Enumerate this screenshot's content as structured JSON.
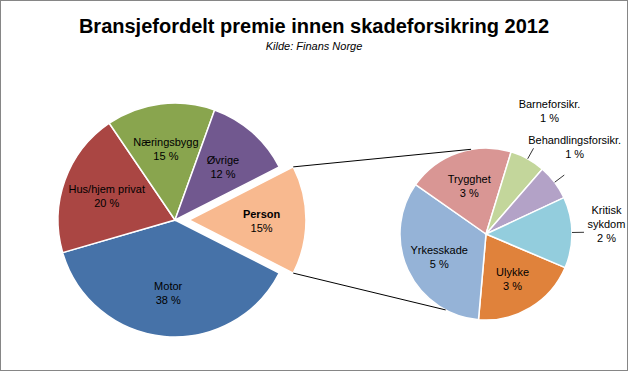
{
  "chart_data": [
    {
      "type": "pie",
      "title": "Bransjefordelt premie innen skadeforsikring 2012",
      "subtitle": "Kilde: Finans Norge",
      "categories": [
        "Motor",
        "Hus/hjem privat",
        "Næringsbygg",
        "Øvrige",
        "Person"
      ],
      "values": [
        38,
        20,
        15,
        12,
        15
      ],
      "value_labels": [
        "38 %",
        "20 %",
        "15 %",
        "12 %",
        "15%"
      ],
      "colors": [
        "#4672a8",
        "#aa4643",
        "#89a54e",
        "#71588f",
        "#f8b98f"
      ],
      "data_labels": true
    },
    {
      "type": "pie",
      "categories": [
        "Ulykke",
        "Yrkesskade",
        "Trygghet",
        "Barneforsikr.",
        "Behandlingsforsikr.",
        "Kritisk sykdom"
      ],
      "values": [
        3,
        5,
        3,
        1,
        1,
        2
      ],
      "value_labels": [
        "3 %",
        "5 %",
        "3 %",
        "1 %",
        "1 %",
        "2 %"
      ],
      "colors": [
        "#e0823b",
        "#95b3d7",
        "#d99694",
        "#c3d69b",
        "#b3a2c7",
        "#93cddd"
      ],
      "data_labels": true
    }
  ]
}
